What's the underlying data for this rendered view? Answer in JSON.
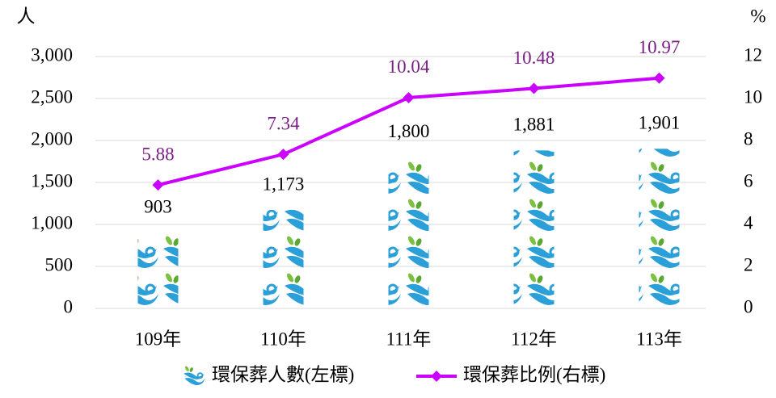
{
  "chart_data": {
    "type": "bar-line",
    "categories": [
      "109年",
      "110年",
      "111年",
      "112年",
      "113年"
    ],
    "y_label": "人",
    "y2_label": "%",
    "series": [
      {
        "name": "環保葬人數(左標)",
        "type": "bar",
        "color": "#2b9fd8",
        "values": [
          903,
          1173,
          1800,
          1881,
          1901
        ],
        "value_labels": [
          "903",
          "1,173",
          "1,800",
          "1,881",
          "1,901"
        ]
      },
      {
        "name": "環保葬比例(右標)",
        "type": "line",
        "axis": "y2",
        "color": "#cc00ff",
        "label_color": "#7b1f86",
        "values": [
          5.88,
          7.34,
          10.04,
          10.48,
          10.97
        ]
      }
    ],
    "ylim": [
      0,
      3000
    ],
    "yticks": [
      0,
      500,
      {
        "value": 1000,
        "label": "1,000"
      },
      {
        "value": 1500,
        "label": "1,500"
      },
      {
        "value": 2000,
        "label": "2,000"
      },
      {
        "value": 2500,
        "label": "2,500"
      },
      {
        "value": 3000,
        "label": "3,000"
      }
    ],
    "y2lim": [
      0,
      12
    ],
    "y2ticks": [
      0,
      2,
      4,
      6,
      8,
      10,
      12
    ],
    "grid": true,
    "legend": "bottom"
  }
}
